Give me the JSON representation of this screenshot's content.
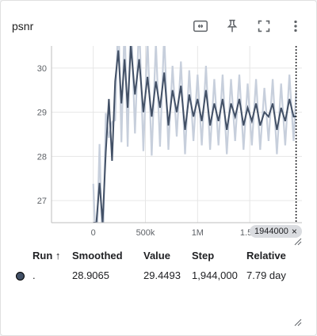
{
  "card": {
    "title": "psnr",
    "tools": [
      "fit-domain-icon",
      "pin-icon",
      "fullscreen-icon",
      "more-vert-icon"
    ]
  },
  "chart_data": {
    "type": "line",
    "x_ticks": [
      {
        "value": 0,
        "label": "0"
      },
      {
        "value": 500000,
        "label": "500k"
      },
      {
        "value": 1000000,
        "label": "1M"
      },
      {
        "value": 1500000,
        "label": "1.5M"
      }
    ],
    "y_ticks": [
      {
        "value": 27,
        "label": "27"
      },
      {
        "value": 28,
        "label": "28"
      },
      {
        "value": 29,
        "label": "29"
      },
      {
        "value": 30,
        "label": "30"
      }
    ],
    "xlim": [
      -400000,
      2000000
    ],
    "ylim": [
      26.5,
      30.5
    ],
    "grid": true,
    "cursor": {
      "x": 1944000,
      "label": "1944000"
    },
    "series": [
      {
        "color": "#425066",
        "raw_color": "#c7cfdc",
        "smoothed_final": 28.9065,
        "raw_final": 29.4493
      }
    ],
    "series_points": [
      [
        0,
        26.5
      ],
      [
        30000,
        26.5
      ],
      [
        60000,
        27.4
      ],
      [
        90000,
        26.5
      ],
      [
        120000,
        28.1
      ],
      [
        150000,
        29.3
      ],
      [
        180000,
        27.9
      ],
      [
        210000,
        29.7
      ],
      [
        240000,
        30.4
      ],
      [
        270000,
        29.2
      ],
      [
        300000,
        30.2
      ],
      [
        330000,
        29.1
      ],
      [
        360000,
        30.5
      ],
      [
        400000,
        29.4
      ],
      [
        440000,
        30.2
      ],
      [
        480000,
        29.0
      ],
      [
        520000,
        29.8
      ],
      [
        560000,
        28.9
      ],
      [
        600000,
        29.7
      ],
      [
        640000,
        29.1
      ],
      [
        680000,
        29.9
      ],
      [
        720000,
        28.7
      ],
      [
        760000,
        29.5
      ],
      [
        800000,
        29.0
      ],
      [
        840000,
        29.6
      ],
      [
        880000,
        28.6
      ],
      [
        920000,
        29.4
      ],
      [
        960000,
        28.9
      ],
      [
        1000000,
        29.3
      ],
      [
        1040000,
        28.8
      ],
      [
        1080000,
        29.5
      ],
      [
        1120000,
        28.7
      ],
      [
        1160000,
        29.2
      ],
      [
        1200000,
        28.8
      ],
      [
        1240000,
        29.3
      ],
      [
        1280000,
        28.6
      ],
      [
        1320000,
        29.2
      ],
      [
        1360000,
        28.9
      ],
      [
        1400000,
        29.3
      ],
      [
        1440000,
        28.7
      ],
      [
        1480000,
        29.1
      ],
      [
        1520000,
        28.8
      ],
      [
        1560000,
        29.2
      ],
      [
        1600000,
        28.7
      ],
      [
        1640000,
        29.0
      ],
      [
        1680000,
        28.9
      ],
      [
        1720000,
        29.2
      ],
      [
        1760000,
        28.6
      ],
      [
        1800000,
        29.1
      ],
      [
        1840000,
        28.8
      ],
      [
        1880000,
        29.3
      ],
      [
        1920000,
        28.9
      ],
      [
        1944000,
        28.9065
      ]
    ]
  },
  "table": {
    "headers": {
      "run": "Run ↑",
      "smoothed": "Smoothed",
      "value": "Value",
      "step": "Step",
      "relative": "Relative"
    },
    "rows": [
      {
        "run": ".",
        "smoothed": "28.9065",
        "value": "29.4493",
        "step": "1,944,000",
        "relative": "7.79 day",
        "color": "#425066"
      }
    ]
  }
}
